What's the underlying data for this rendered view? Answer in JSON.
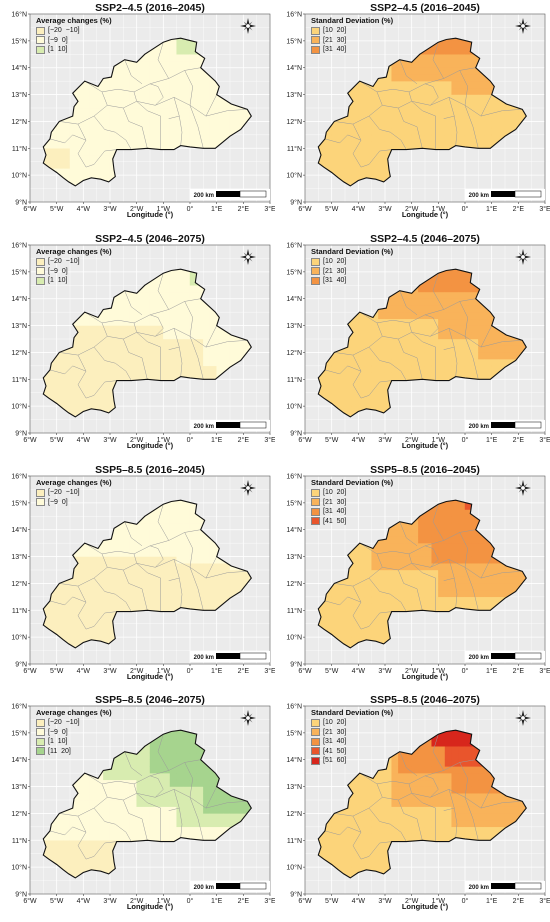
{
  "axis": {
    "x_label": "Longitude (°)",
    "x_ticks": [
      "6°W",
      "5°W",
      "4°W",
      "3°W",
      "2°W",
      "1°W",
      "0°",
      "1°E",
      "2°E",
      "3°E"
    ],
    "y_ticks": [
      "16°N",
      "15°N",
      "14°N",
      "13°N",
      "12°N",
      "11°N",
      "10°N",
      "9°N"
    ],
    "lon_range": [
      -6,
      3
    ],
    "lat_range": [
      9,
      16
    ]
  },
  "scalebar": "200 km",
  "colors": {
    "avg_neg20_neg10": "#fcefbe",
    "avg_neg9_0": "#fffbd9",
    "avg_1_10": "#d8ecb0",
    "avg_11_20": "#a6d48e",
    "sd_10_20": "#fcd47a",
    "sd_21_30": "#f9b35a",
    "sd_31_40": "#f39342",
    "sd_41_50": "#e9552c",
    "sd_51_60": "#d7261c",
    "background": "#ebebeb",
    "grid": "#ffffff"
  },
  "panels": [
    {
      "id": "p1",
      "title": "SSP2–4.5 (2016–2045)",
      "legend_title": "Average changes (%)",
      "legend": [
        {
          "label": "[−20  −10]",
          "color": "#fcefbe"
        },
        {
          "label": "[−9  0]",
          "color": "#fffbd9"
        },
        {
          "label": "[1  10]",
          "color": "#d8ecb0"
        }
      ]
    },
    {
      "id": "p2",
      "title": "SSP2–4.5 (2016–2045)",
      "legend_title": "Standard Deviation (%)",
      "legend": [
        {
          "label": "[10  20]",
          "color": "#fcd47a"
        },
        {
          "label": "[21  30]",
          "color": "#f9b35a"
        },
        {
          "label": "[31  40]",
          "color": "#f39342"
        }
      ]
    },
    {
      "id": "p3",
      "title": "SSP2–4.5 (2046–2075)",
      "legend_title": "Average changes (%)",
      "legend": [
        {
          "label": "[−20  −10]",
          "color": "#fcefbe"
        },
        {
          "label": "[−9  0]",
          "color": "#fffbd9"
        },
        {
          "label": "[1  10]",
          "color": "#d8ecb0"
        }
      ]
    },
    {
      "id": "p4",
      "title": "SSP2–4.5 (2046–2075)",
      "legend_title": "Standard Deviation (%)",
      "legend": [
        {
          "label": "[10  20]",
          "color": "#fcd47a"
        },
        {
          "label": "[21  30]",
          "color": "#f9b35a"
        },
        {
          "label": "[31  40]",
          "color": "#f39342"
        }
      ]
    },
    {
      "id": "p5",
      "title": "SSP5–8.5 (2016–2045)",
      "legend_title": "Average changes (%)",
      "legend": [
        {
          "label": "[−20  −10]",
          "color": "#fcefbe"
        },
        {
          "label": "[−9  0]",
          "color": "#fffbd9"
        }
      ]
    },
    {
      "id": "p6",
      "title": "SSP5–8.5 (2016–2045)",
      "legend_title": "Standard Deviation (%)",
      "legend": [
        {
          "label": "[10  20]",
          "color": "#fcd47a"
        },
        {
          "label": "[21  30]",
          "color": "#f9b35a"
        },
        {
          "label": "[31  40]",
          "color": "#f39342"
        },
        {
          "label": "[41  50]",
          "color": "#e9552c"
        }
      ]
    },
    {
      "id": "p7",
      "title": "SSP5–8.5 (2046–2075)",
      "legend_title": "Average changes (%)",
      "legend": [
        {
          "label": "[−20  −10]",
          "color": "#fcefbe"
        },
        {
          "label": "[−9  0]",
          "color": "#fffbd9"
        },
        {
          "label": "[1  10]",
          "color": "#d8ecb0"
        },
        {
          "label": "[11  20]",
          "color": "#a6d48e"
        }
      ]
    },
    {
      "id": "p8",
      "title": "SSP5–8.5 (2046–2075)",
      "legend_title": "Standard Deviation (%)",
      "legend": [
        {
          "label": "[10  20]",
          "color": "#fcd47a"
        },
        {
          "label": "[21  30]",
          "color": "#f9b35a"
        },
        {
          "label": "[31  40]",
          "color": "#f39342"
        },
        {
          "label": "[41  50]",
          "color": "#e9552c"
        },
        {
          "label": "[51  60]",
          "color": "#d7261c"
        }
      ]
    }
  ]
}
